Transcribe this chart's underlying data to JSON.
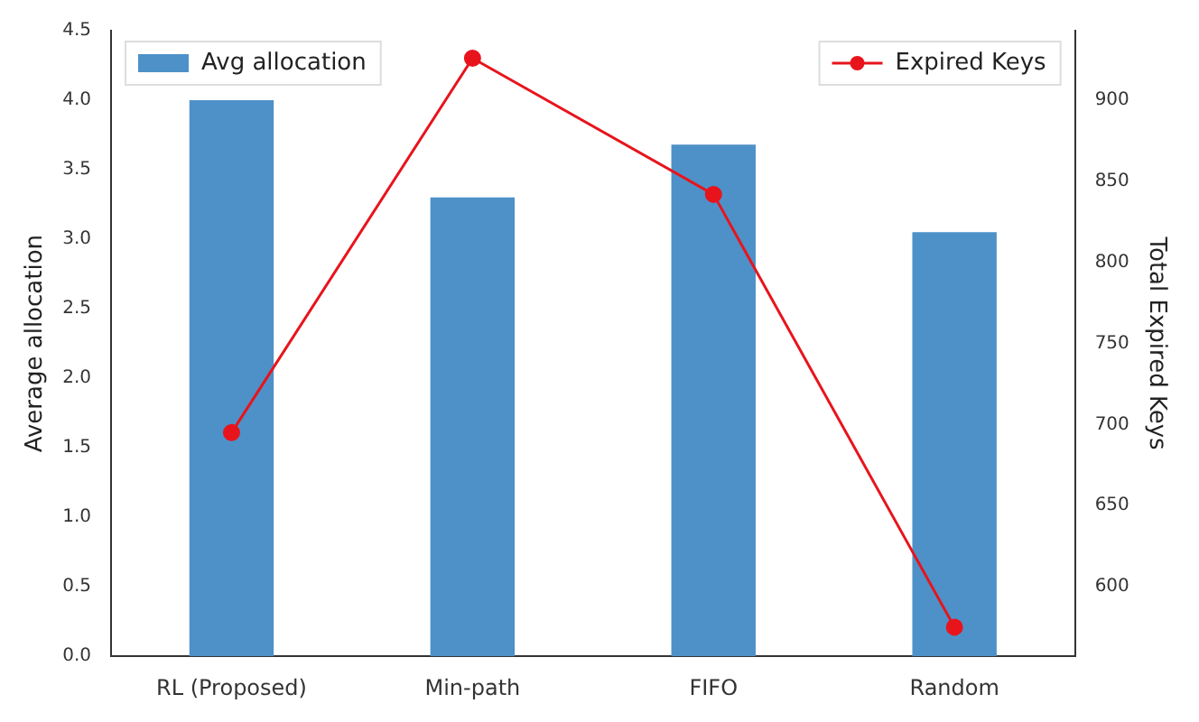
{
  "chart_data": {
    "type": "bar",
    "categories": [
      "RL (Proposed)",
      "Min-path",
      "FIFO",
      "Random"
    ],
    "series": [
      {
        "name": "Avg allocation",
        "color": "#4d91c8",
        "values": [
          4.0,
          3.3,
          3.68,
          3.05
        ]
      },
      {
        "name": "Expired Keys",
        "type": "line",
        "axis": "y2",
        "color": "#e8141c",
        "marker": "circle",
        "values": [
          695,
          926,
          842,
          575
        ]
      }
    ],
    "ylabel": "Average allocation",
    "y2label": "Total Expired Keys",
    "ylim": [
      0,
      4.5
    ],
    "yticks": [
      {
        "value": 0,
        "label": "0.0"
      },
      0.5,
      {
        "value": 1,
        "label": "1.0"
      },
      1.5,
      {
        "value": 2,
        "label": "2.0"
      },
      2.5,
      {
        "value": 3,
        "label": "3.0"
      },
      3.5,
      {
        "value": 4,
        "label": "4.0"
      },
      4.5
    ],
    "y2lim": [
      557,
      943
    ],
    "y2ticks": [
      600,
      650,
      700,
      750,
      800,
      850,
      900
    ],
    "grid": false,
    "legend": "top"
  }
}
